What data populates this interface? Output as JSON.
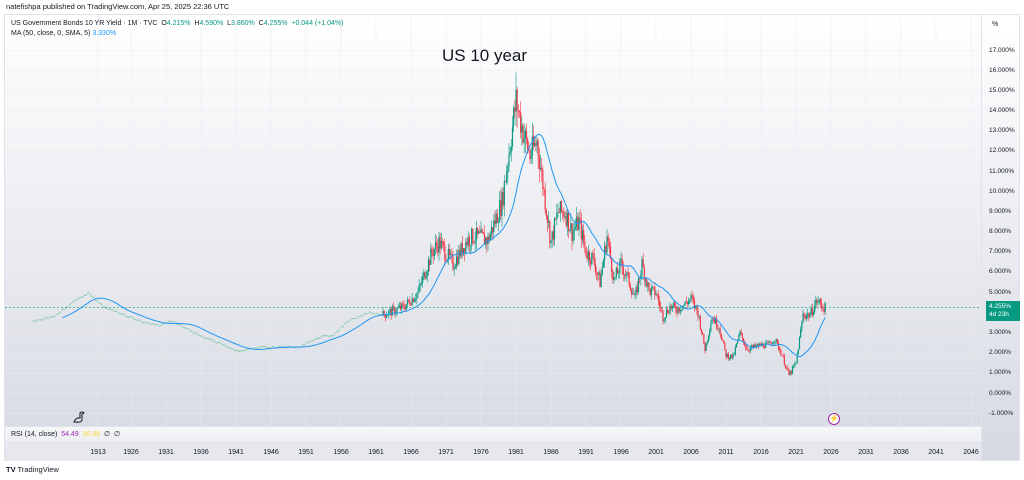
{
  "published": "natefishpa published on TradingView.com, Apr 25, 2025 22:36 UTC",
  "legend": {
    "symbol": "US Government Bonds 10 YR Yield · 1M · TVC",
    "o_label": "O",
    "o": "4.215%",
    "h_label": "H",
    "h": "4.590%",
    "l_label": "L",
    "l": "3.860%",
    "c_label": "C",
    "c": "4.255%",
    "change": "+0.044 (+1.04%)",
    "ma_label": "MA (50, close, 0, SMA, 5)",
    "ma_value": "3.330%"
  },
  "annotation": "US 10 year",
  "axis": {
    "unit": "%",
    "labels": [
      "17.000%",
      "16.000%",
      "15.000%",
      "14.000%",
      "13.000%",
      "12.000%",
      "11.000%",
      "10.000%",
      "9.000%",
      "8.000%",
      "7.000%",
      "6.000%",
      "5.000%",
      "3.000%",
      "2.000%",
      "1.000%",
      "0.000%",
      "-1.000%"
    ],
    "price_tag": "4.255%",
    "countdown": "4d 23h"
  },
  "rsi": {
    "label": "RSI (14, close)",
    "value": "54.49",
    "ma": "56.68",
    "x1": "∅",
    "x2": "∅"
  },
  "xaxis": [
    "1913",
    "1926",
    "1931",
    "1936",
    "1941",
    "1946",
    "1951",
    "1956",
    "1961",
    "1966",
    "1971",
    "1976",
    "1981",
    "1986",
    "1991",
    "1996",
    "2001",
    "2006",
    "2011",
    "2016",
    "2021",
    "2026",
    "2031",
    "2036",
    "2041",
    "2046"
  ],
  "footer": "TradingView",
  "colors": {
    "up": "#089981",
    "down": "#f23645",
    "ma": "#2196f3"
  },
  "chart_data": {
    "type": "candlestick",
    "title": "US 10 year",
    "ylabel": "%",
    "ylim": [
      -1.5,
      17.5
    ],
    "years": [
      1912,
      1915,
      1918,
      1920,
      1922,
      1925,
      1928,
      1930,
      1932,
      1935,
      1938,
      1941,
      1945,
      1950,
      1953,
      1955,
      1957,
      1960,
      1962,
      1965,
      1967,
      1969,
      1970,
      1972,
      1974,
      1975,
      1977,
      1979,
      1980,
      1981,
      1982,
      1983,
      1984,
      1985,
      1986,
      1987,
      1988,
      1989,
      1990,
      1991,
      1992,
      1993,
      1994,
      1995,
      1996,
      1997,
      1998,
      1999,
      2000,
      2001,
      2002,
      2003,
      2004,
      2005,
      2006,
      2007,
      2008,
      2009,
      2010,
      2011,
      2012,
      2013,
      2014,
      2015,
      2016,
      2017,
      2018,
      2019,
      2020,
      2021,
      2022,
      2023,
      2024,
      2025
    ],
    "closes": [
      3.6,
      3.8,
      4.6,
      5.0,
      4.3,
      3.9,
      3.5,
      3.4,
      3.6,
      3.0,
      2.6,
      2.1,
      2.3,
      2.3,
      2.8,
      2.9,
      3.6,
      4.0,
      3.9,
      4.3,
      5.0,
      7.0,
      7.5,
      6.4,
      7.6,
      7.8,
      7.6,
      9.5,
      12,
      14.5,
      13,
      11.8,
      12.5,
      10,
      7.5,
      9,
      9,
      8,
      8.5,
      7.0,
      6.7,
      5.5,
      7.8,
      5.6,
      6.4,
      5.7,
      4.7,
      6.4,
      5.1,
      5.0,
      3.8,
      4.3,
      4.2,
      4.4,
      4.7,
      4.0,
      2.2,
      3.8,
      3.3,
      1.9,
      1.8,
      3.0,
      2.2,
      2.3,
      2.4,
      2.4,
      2.7,
      1.9,
      0.9,
      1.5,
      3.9,
      3.9,
      4.6,
      4.26
    ]
  }
}
